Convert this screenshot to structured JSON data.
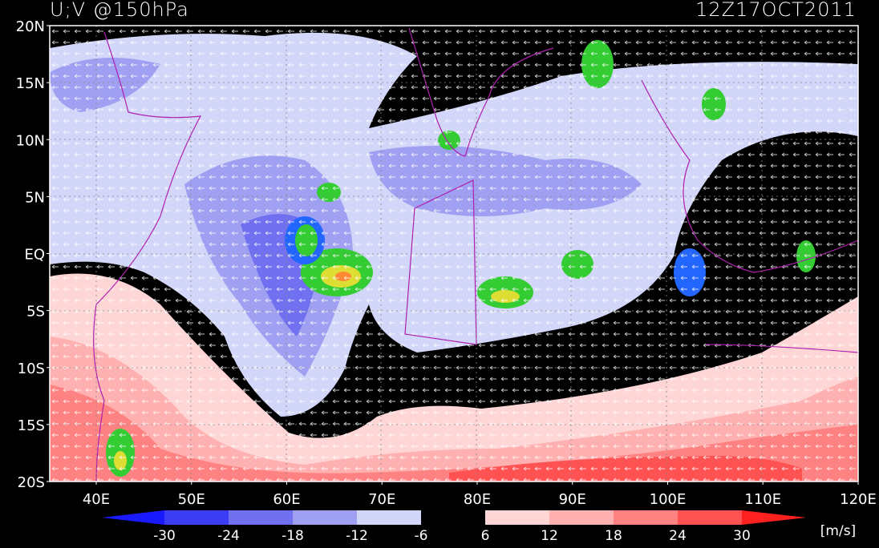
{
  "title": "U;V @150hPa",
  "timestamp": "12Z17OCT2011",
  "lat_labels": [
    "20N",
    "15N",
    "10N",
    "5N",
    "EQ",
    "5S",
    "10S",
    "15S",
    "20S"
  ],
  "lon_labels": [
    "40E",
    "50E",
    "60E",
    "70E",
    "80E",
    "90E",
    "100E",
    "110E",
    "120E"
  ],
  "colorbar": {
    "labels": [
      "-30",
      "-24",
      "-18",
      "-12",
      "-6",
      "6",
      "12",
      "18",
      "24",
      "30"
    ],
    "colors": [
      "#1a1aff",
      "#3c3cf5",
      "#7070f0",
      "#a0a0f2",
      "#d2d6f8",
      "#000000",
      "#ffd6d6",
      "#ffb0b0",
      "#ff8282",
      "#ff5252",
      "#ff2020"
    ],
    "unit": "[m/s]"
  }
}
